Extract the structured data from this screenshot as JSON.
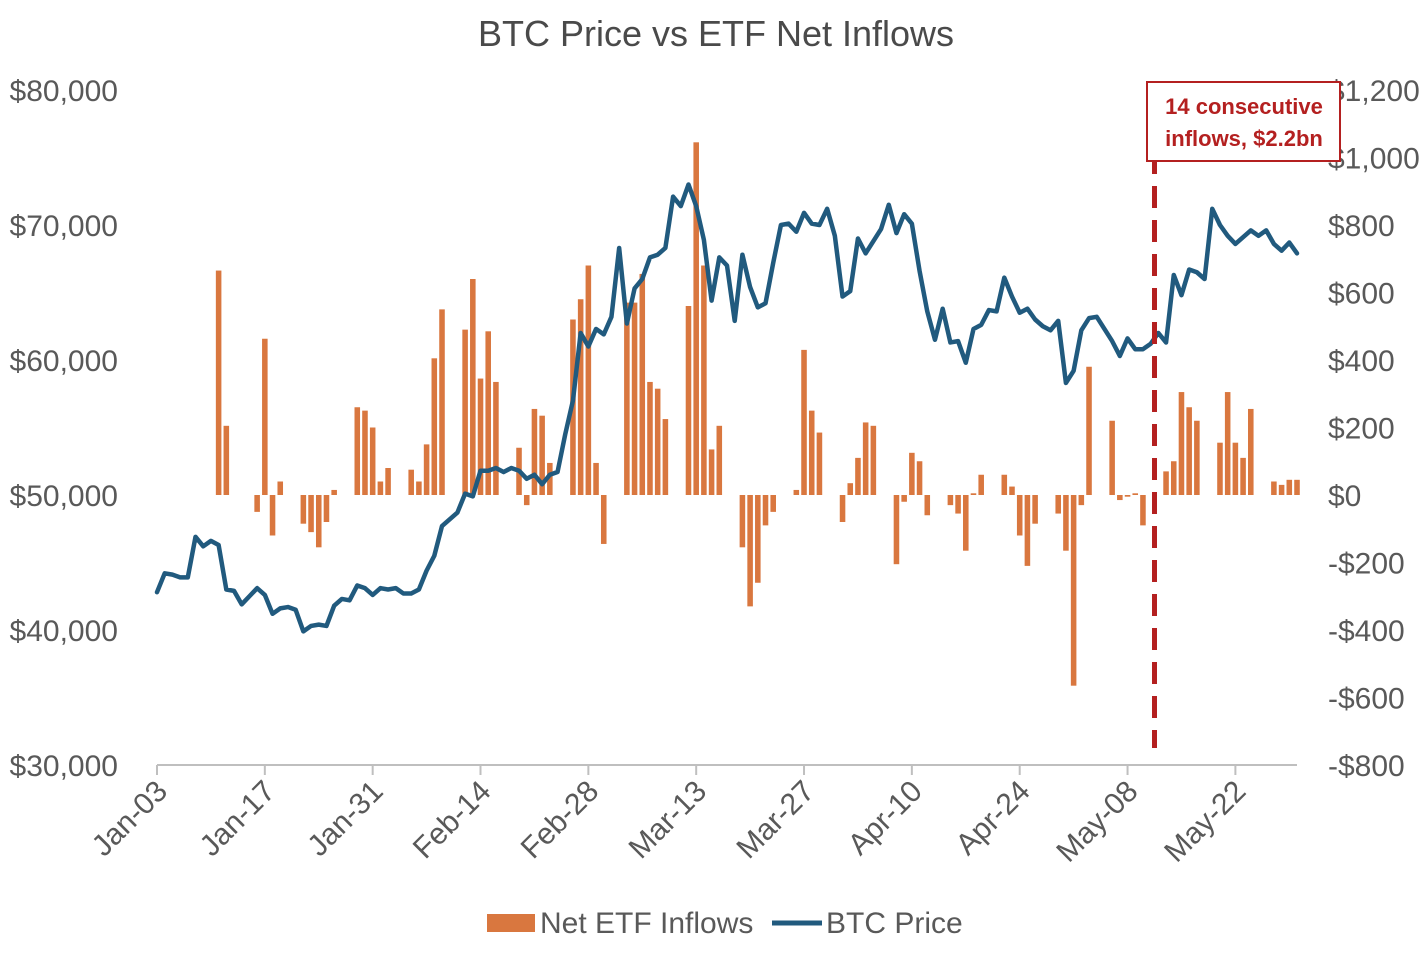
{
  "chart_data": {
    "type": "bar+line",
    "title": "BTC Price vs ETF Net Inflows",
    "x_tick_labels": [
      "Jan-03",
      "Jan-17",
      "Jan-31",
      "Feb-14",
      "Feb-28",
      "Mar-13",
      "Mar-27",
      "Apr-10",
      "Apr-24",
      "May-08",
      "May-22"
    ],
    "y_left": {
      "ticks": [
        30000,
        40000,
        50000,
        60000,
        70000,
        80000
      ],
      "tick_labels": [
        "$30,000",
        "$40,000",
        "$50,000",
        "$60,000",
        "$70,000",
        "$80,000"
      ],
      "range": [
        30000,
        80000
      ]
    },
    "y_right": {
      "ticks": [
        -800,
        -600,
        -400,
        -200,
        0,
        200,
        400,
        600,
        800,
        1000,
        1200
      ],
      "tick_labels": [
        "-$800",
        "-$600",
        "-$400",
        "-$200",
        "$0",
        "$200",
        "$400",
        "$600",
        "$800",
        "$1,000",
        "$1,200"
      ],
      "range": [
        -800,
        1200
      ]
    },
    "x_range_days": [
      0,
      148
    ],
    "series": [
      {
        "name": "Net ETF Inflows",
        "type": "bar",
        "axis": "right",
        "color": "#d9773f",
        "points": [
          [
            8,
            665
          ],
          [
            9,
            205
          ],
          [
            13,
            -50
          ],
          [
            14,
            463
          ],
          [
            15,
            -120
          ],
          [
            16,
            40
          ],
          [
            19,
            -85
          ],
          [
            20,
            -110
          ],
          [
            21,
            -155
          ],
          [
            22,
            -80
          ],
          [
            23,
            15
          ],
          [
            26,
            260
          ],
          [
            27,
            250
          ],
          [
            28,
            200
          ],
          [
            29,
            40
          ],
          [
            30,
            80
          ],
          [
            33,
            75
          ],
          [
            34,
            40
          ],
          [
            35,
            150
          ],
          [
            36,
            405
          ],
          [
            37,
            550
          ],
          [
            40,
            490
          ],
          [
            41,
            640
          ],
          [
            42,
            345
          ],
          [
            43,
            485
          ],
          [
            44,
            335
          ],
          [
            47,
            140
          ],
          [
            48,
            -30
          ],
          [
            49,
            255
          ],
          [
            50,
            235
          ],
          [
            51,
            95
          ],
          [
            54,
            520
          ],
          [
            55,
            580
          ],
          [
            56,
            680
          ],
          [
            57,
            95
          ],
          [
            58,
            -145
          ],
          [
            61,
            570
          ],
          [
            62,
            570
          ],
          [
            63,
            655
          ],
          [
            64,
            335
          ],
          [
            65,
            315
          ],
          [
            66,
            225
          ],
          [
            69,
            560
          ],
          [
            70,
            1045
          ],
          [
            71,
            680
          ],
          [
            72,
            135
          ],
          [
            73,
            205
          ],
          [
            76,
            -155
          ],
          [
            77,
            -330
          ],
          [
            78,
            -260
          ],
          [
            79,
            -90
          ],
          [
            80,
            -50
          ],
          [
            83,
            15
          ],
          [
            84,
            430
          ],
          [
            85,
            250
          ],
          [
            86,
            185
          ],
          [
            89,
            -80
          ],
          [
            90,
            35
          ],
          [
            91,
            110
          ],
          [
            92,
            215
          ],
          [
            93,
            205
          ],
          [
            96,
            -205
          ],
          [
            97,
            -20
          ],
          [
            98,
            125
          ],
          [
            99,
            100
          ],
          [
            100,
            -60
          ],
          [
            103,
            -30
          ],
          [
            104,
            -55
          ],
          [
            105,
            -165
          ],
          [
            106,
            5
          ],
          [
            107,
            60
          ],
          [
            110,
            60
          ],
          [
            111,
            25
          ],
          [
            112,
            -120
          ],
          [
            113,
            -210
          ],
          [
            114,
            -85
          ],
          [
            117,
            -55
          ],
          [
            118,
            -165
          ],
          [
            119,
            -565
          ],
          [
            120,
            -30
          ],
          [
            121,
            380
          ],
          [
            124,
            220
          ],
          [
            125,
            -15
          ],
          [
            126,
            -5
          ],
          [
            127,
            5
          ],
          [
            128,
            -90
          ],
          [
            131,
            70
          ],
          [
            132,
            100
          ],
          [
            133,
            305
          ],
          [
            134,
            260
          ],
          [
            135,
            220
          ],
          [
            138,
            155
          ],
          [
            139,
            305
          ],
          [
            140,
            155
          ],
          [
            141,
            110
          ],
          [
            142,
            255
          ],
          [
            145,
            40
          ],
          [
            146,
            30
          ],
          [
            147,
            45
          ],
          [
            148,
            45
          ]
        ]
      },
      {
        "name": "BTC Price",
        "type": "line",
        "axis": "left",
        "color": "#215a7e",
        "points": [
          [
            0,
            42800
          ],
          [
            1,
            44200
          ],
          [
            2,
            44100
          ],
          [
            3,
            43900
          ],
          [
            4,
            43900
          ],
          [
            5,
            46900
          ],
          [
            6,
            46200
          ],
          [
            7,
            46600
          ],
          [
            8,
            46300
          ],
          [
            9,
            43000
          ],
          [
            10,
            42900
          ],
          [
            11,
            41900
          ],
          [
            12,
            42500
          ],
          [
            13,
            43100
          ],
          [
            14,
            42600
          ],
          [
            15,
            41200
          ],
          [
            16,
            41600
          ],
          [
            17,
            41700
          ],
          [
            18,
            41500
          ],
          [
            19,
            39900
          ],
          [
            20,
            40300
          ],
          [
            21,
            40400
          ],
          [
            22,
            40300
          ],
          [
            23,
            41800
          ],
          [
            24,
            42300
          ],
          [
            25,
            42200
          ],
          [
            26,
            43300
          ],
          [
            27,
            43100
          ],
          [
            28,
            42600
          ],
          [
            29,
            43100
          ],
          [
            30,
            43000
          ],
          [
            31,
            43100
          ],
          [
            32,
            42700
          ],
          [
            33,
            42700
          ],
          [
            34,
            43000
          ],
          [
            35,
            44400
          ],
          [
            36,
            45500
          ],
          [
            37,
            47700
          ],
          [
            38,
            48200
          ],
          [
            39,
            48700
          ],
          [
            40,
            50100
          ],
          [
            41,
            49900
          ],
          [
            42,
            51800
          ],
          [
            43,
            51800
          ],
          [
            44,
            52000
          ],
          [
            45,
            51700
          ],
          [
            46,
            52000
          ],
          [
            47,
            51800
          ],
          [
            48,
            51200
          ],
          [
            49,
            51500
          ],
          [
            50,
            50800
          ],
          [
            51,
            51500
          ],
          [
            52,
            51700
          ],
          [
            53,
            54500
          ],
          [
            54,
            57000
          ],
          [
            55,
            62000
          ],
          [
            56,
            61000
          ],
          [
            57,
            62300
          ],
          [
            58,
            61900
          ],
          [
            59,
            63200
          ],
          [
            60,
            68300
          ],
          [
            61,
            62700
          ],
          [
            62,
            65300
          ],
          [
            63,
            66000
          ],
          [
            64,
            67600
          ],
          [
            65,
            67800
          ],
          [
            66,
            68300
          ],
          [
            67,
            72100
          ],
          [
            68,
            71400
          ],
          [
            69,
            73000
          ],
          [
            70,
            71400
          ],
          [
            71,
            68900
          ],
          [
            72,
            64400
          ],
          [
            73,
            67600
          ],
          [
            74,
            67000
          ],
          [
            75,
            62900
          ],
          [
            76,
            67800
          ],
          [
            77,
            65400
          ],
          [
            78,
            63900
          ],
          [
            79,
            64200
          ],
          [
            80,
            67200
          ],
          [
            81,
            70000
          ],
          [
            82,
            70100
          ],
          [
            83,
            69500
          ],
          [
            84,
            70900
          ],
          [
            85,
            70100
          ],
          [
            86,
            70000
          ],
          [
            87,
            71200
          ],
          [
            88,
            69200
          ],
          [
            89,
            64700
          ],
          [
            90,
            65100
          ],
          [
            91,
            69000
          ],
          [
            92,
            67900
          ],
          [
            93,
            68800
          ],
          [
            94,
            69700
          ],
          [
            95,
            71500
          ],
          [
            96,
            69400
          ],
          [
            97,
            70800
          ],
          [
            98,
            70100
          ],
          [
            99,
            66600
          ],
          [
            100,
            63600
          ],
          [
            101,
            61500
          ],
          [
            102,
            63800
          ],
          [
            103,
            61300
          ],
          [
            104,
            61400
          ],
          [
            105,
            59800
          ],
          [
            106,
            62300
          ],
          [
            107,
            62600
          ],
          [
            108,
            63700
          ],
          [
            109,
            63600
          ],
          [
            110,
            66100
          ],
          [
            111,
            64700
          ],
          [
            112,
            63500
          ],
          [
            113,
            63800
          ],
          [
            114,
            63000
          ],
          [
            115,
            62500
          ],
          [
            116,
            62200
          ],
          [
            117,
            62900
          ],
          [
            118,
            58300
          ],
          [
            119,
            59200
          ],
          [
            120,
            62200
          ],
          [
            121,
            63100
          ],
          [
            122,
            63200
          ],
          [
            123,
            62300
          ],
          [
            124,
            61400
          ],
          [
            125,
            60300
          ],
          [
            126,
            61600
          ],
          [
            127,
            60800
          ],
          [
            128,
            60800
          ],
          [
            129,
            61200
          ],
          [
            130,
            62000
          ],
          [
            131,
            61300
          ],
          [
            132,
            66300
          ],
          [
            133,
            64800
          ],
          [
            134,
            66700
          ],
          [
            135,
            66500
          ],
          [
            136,
            66000
          ],
          [
            137,
            71200
          ],
          [
            138,
            70000
          ],
          [
            139,
            69200
          ],
          [
            140,
            68600
          ],
          [
            141,
            69100
          ],
          [
            142,
            69600
          ],
          [
            143,
            69200
          ],
          [
            144,
            69600
          ],
          [
            145,
            68600
          ],
          [
            146,
            68100
          ],
          [
            147,
            68700
          ],
          [
            148,
            67900
          ]
        ]
      }
    ],
    "annotation": {
      "lines": [
        "14 consecutive",
        "inflows, $2.2bn"
      ],
      "marker_x_day": 129.5,
      "color": "#b42020",
      "style": "dashed vertical line"
    },
    "legend": {
      "position": "bottom",
      "entries": [
        "Net ETF Inflows",
        "BTC Price"
      ]
    },
    "grid": false
  }
}
